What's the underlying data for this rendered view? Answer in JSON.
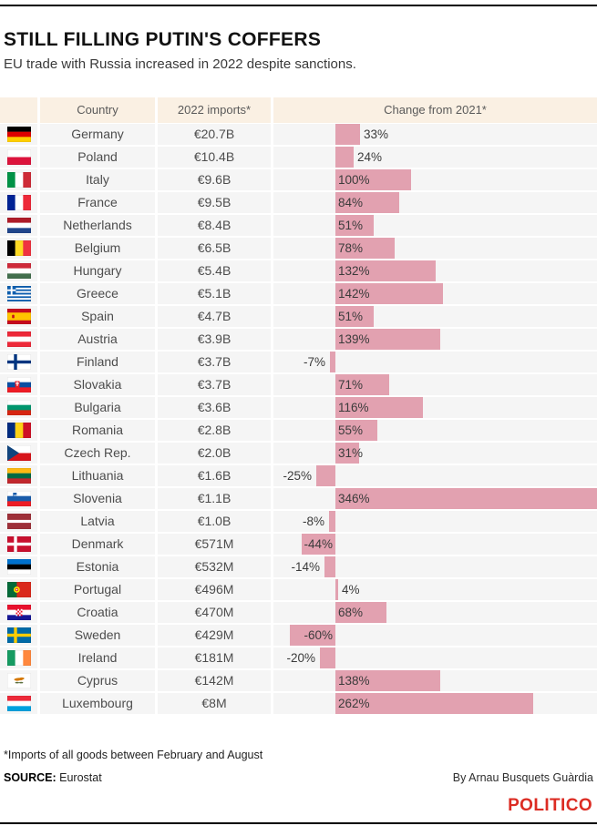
{
  "header": {
    "title": "STILL FILLING PUTIN'S COFFERS",
    "subtitle": "EU trade with Russia increased in 2022 despite sanctions."
  },
  "table": {
    "col_country": "Country",
    "col_imports": "2022 imports*",
    "col_change": "Change from 2021*"
  },
  "chart_data": {
    "type": "bar",
    "title": "STILL FILLING PUTIN'S COFFERS",
    "subtitle": "EU trade with Russia increased in 2022 despite sanctions.",
    "columns": [
      "Country",
      "2022 imports*",
      "Change from 2021*"
    ],
    "unit": "% change from 2021",
    "value_range_shown": [
      -60,
      346
    ],
    "bar_color": "#e2a1b0",
    "rows": [
      {
        "country": "Germany",
        "flag": "germany",
        "imports": "€20.7B",
        "change": 33,
        "change_label": "33%",
        "label_pos": "outside-right"
      },
      {
        "country": "Poland",
        "flag": "poland",
        "imports": "€10.4B",
        "change": 24,
        "change_label": "24%",
        "label_pos": "outside-right"
      },
      {
        "country": "Italy",
        "flag": "italy",
        "imports": "€9.6B",
        "change": 100,
        "change_label": "100%",
        "label_pos": "inside-left"
      },
      {
        "country": "France",
        "flag": "france",
        "imports": "€9.5B",
        "change": 84,
        "change_label": "84%",
        "label_pos": "inside-left"
      },
      {
        "country": "Netherlands",
        "flag": "netherlands",
        "imports": "€8.4B",
        "change": 51,
        "change_label": "51%",
        "label_pos": "inside-left"
      },
      {
        "country": "Belgium",
        "flag": "belgium",
        "imports": "€6.5B",
        "change": 78,
        "change_label": "78%",
        "label_pos": "inside-left"
      },
      {
        "country": "Hungary",
        "flag": "hungary",
        "imports": "€5.4B",
        "change": 132,
        "change_label": "132%",
        "label_pos": "inside-left"
      },
      {
        "country": "Greece",
        "flag": "greece",
        "imports": "€5.1B",
        "change": 142,
        "change_label": "142%",
        "label_pos": "inside-left"
      },
      {
        "country": "Spain",
        "flag": "spain",
        "imports": "€4.7B",
        "change": 51,
        "change_label": "51%",
        "label_pos": "inside-left"
      },
      {
        "country": "Austria",
        "flag": "austria",
        "imports": "€3.9B",
        "change": 139,
        "change_label": "139%",
        "label_pos": "inside-left"
      },
      {
        "country": "Finland",
        "flag": "finland",
        "imports": "€3.7B",
        "change": -7,
        "change_label": "-7%",
        "label_pos": "outside-left"
      },
      {
        "country": "Slovakia",
        "flag": "slovakia",
        "imports": "€3.7B",
        "change": 71,
        "change_label": "71%",
        "label_pos": "inside-left"
      },
      {
        "country": "Bulgaria",
        "flag": "bulgaria",
        "imports": "€3.6B",
        "change": 116,
        "change_label": "116%",
        "label_pos": "inside-left"
      },
      {
        "country": "Romania",
        "flag": "romania",
        "imports": "€2.8B",
        "change": 55,
        "change_label": "55%",
        "label_pos": "inside-left"
      },
      {
        "country": "Czech Rep.",
        "flag": "czechia",
        "imports": "€2.0B",
        "change": 31,
        "change_label": "31%",
        "label_pos": "inside-left"
      },
      {
        "country": "Lithuania",
        "flag": "lithuania",
        "imports": "€1.6B",
        "change": -25,
        "change_label": "-25%",
        "label_pos": "outside-left"
      },
      {
        "country": "Slovenia",
        "flag": "slovenia",
        "imports": "€1.1B",
        "change": 346,
        "change_label": "346%",
        "label_pos": "inside-left"
      },
      {
        "country": "Latvia",
        "flag": "latvia",
        "imports": "€1.0B",
        "change": -8,
        "change_label": "-8%",
        "label_pos": "outside-left"
      },
      {
        "country": "Denmark",
        "flag": "denmark",
        "imports": "€571M",
        "change": -44,
        "change_label": "-44%",
        "label_pos": "inside-right"
      },
      {
        "country": "Estonia",
        "flag": "estonia",
        "imports": "€532M",
        "change": -14,
        "change_label": "-14%",
        "label_pos": "outside-left"
      },
      {
        "country": "Portugal",
        "flag": "portugal",
        "imports": "€496M",
        "change": 4,
        "change_label": "4%",
        "label_pos": "outside-right"
      },
      {
        "country": "Croatia",
        "flag": "croatia",
        "imports": "€470M",
        "change": 68,
        "change_label": "68%",
        "label_pos": "inside-left"
      },
      {
        "country": "Sweden",
        "flag": "sweden",
        "imports": "€429M",
        "change": -60,
        "change_label": "-60%",
        "label_pos": "inside-right"
      },
      {
        "country": "Ireland",
        "flag": "ireland",
        "imports": "€181M",
        "change": -20,
        "change_label": "-20%",
        "label_pos": "outside-left"
      },
      {
        "country": "Cyprus",
        "flag": "cyprus",
        "imports": "€142M",
        "change": 138,
        "change_label": "138%",
        "label_pos": "inside-left"
      },
      {
        "country": "Luxembourg",
        "flag": "luxembourg",
        "imports": "€8M",
        "change": 262,
        "change_label": "262%",
        "label_pos": "inside-left"
      }
    ]
  },
  "footer": {
    "note": "*Imports of all goods between February and August",
    "source_label": "SOURCE:",
    "source_value": "Eurostat",
    "byline": "By Arnau Busquets Guàrdia",
    "logo": "POLITICO"
  },
  "colors": {
    "bar_pink": "#e2a1b0",
    "header_beige": "#faf0e3",
    "row_gray": "#f5f5f5",
    "politico_red": "#dc2c23",
    "rule_black": "#000000"
  }
}
